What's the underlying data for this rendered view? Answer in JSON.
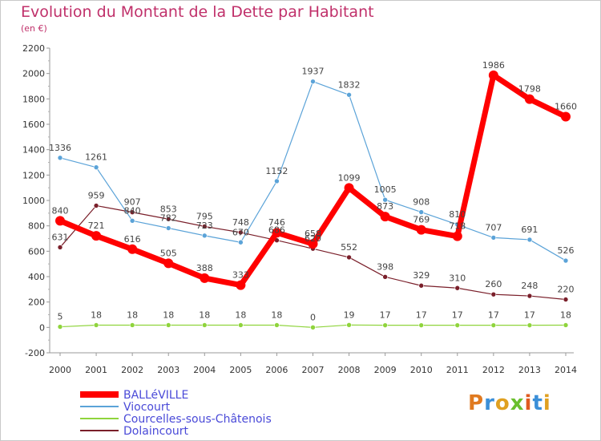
{
  "title": "Evolution du Montant de la Dette par Habitant",
  "subtitle": "(en €)",
  "brand": "Proxiti",
  "chart_data": {
    "type": "line",
    "categories": [
      "2000",
      "2001",
      "2002",
      "2003",
      "2004",
      "2005",
      "2006",
      "2007",
      "2008",
      "2009",
      "2010",
      "2011",
      "2012",
      "2013",
      "2014"
    ],
    "ylim": [
      -200,
      2200
    ],
    "yticks": [
      -200,
      0,
      200,
      400,
      600,
      800,
      1000,
      1200,
      1400,
      1600,
      1800,
      2000,
      2200
    ],
    "grid": false,
    "legend_position": "bottom-left",
    "series": [
      {
        "name": "BALLéVILLE",
        "color": "#ff0000",
        "values": [
          840,
          721,
          616,
          505,
          388,
          333,
          746,
          658,
          1099,
          873,
          769,
          718,
          1986,
          1798,
          1660
        ]
      },
      {
        "name": "Viocourt",
        "color": "#5ba3d8",
        "values": [
          1336,
          1261,
          840,
          782,
          723,
          670,
          1152,
          1937,
          1832,
          1005,
          908,
          810,
          707,
          691,
          526
        ]
      },
      {
        "name": "Courcelles-sous-Châtenois",
        "color": "#8fd43c",
        "values": [
          5,
          18,
          18,
          18,
          18,
          18,
          18,
          0,
          19,
          17,
          17,
          17,
          17,
          17,
          18
        ]
      },
      {
        "name": "Dolaincourt",
        "color": "#7a1f2a",
        "values": [
          631,
          959,
          907,
          853,
          795,
          748,
          686,
          620,
          552,
          398,
          329,
          310,
          260,
          248,
          220
        ]
      }
    ]
  }
}
